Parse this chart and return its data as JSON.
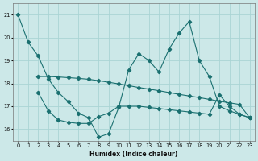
{
  "xlabel": "Humidex (Indice chaleur)",
  "background_color": "#cce8e8",
  "grid_color": "#aad4d4",
  "line_color": "#1a7070",
  "xlim": [
    -0.5,
    23.5
  ],
  "ylim": [
    15.5,
    21.5
  ],
  "yticks": [
    16,
    17,
    18,
    19,
    20,
    21
  ],
  "xticks": [
    0,
    1,
    2,
    3,
    4,
    5,
    6,
    7,
    8,
    9,
    10,
    11,
    12,
    13,
    14,
    15,
    16,
    17,
    18,
    19,
    20,
    21,
    22,
    23
  ],
  "s1_x": [
    0,
    1,
    2,
    3,
    4,
    5,
    6,
    7,
    8,
    9,
    10,
    11,
    12,
    13,
    14,
    15,
    16,
    17,
    18,
    19,
    20,
    21,
    22,
    23
  ],
  "s1_y": [
    21.0,
    19.8,
    19.2,
    18.2,
    17.6,
    17.2,
    16.7,
    16.5,
    15.65,
    15.8,
    16.95,
    18.6,
    19.3,
    19.0,
    18.5,
    19.5,
    20.2,
    20.7,
    19.0,
    18.3,
    17.0,
    16.8,
    16.65,
    16.5
  ],
  "s2_x": [
    2,
    3,
    4,
    5,
    6,
    7,
    8,
    9,
    10,
    11,
    12,
    13,
    14,
    15,
    16,
    17,
    18,
    19,
    20,
    21,
    22,
    23
  ],
  "s2_y": [
    17.6,
    16.8,
    16.4,
    16.3,
    16.25,
    16.25,
    16.55,
    16.7,
    17.0,
    17.0,
    17.0,
    16.95,
    16.9,
    16.85,
    16.8,
    16.75,
    16.7,
    16.65,
    17.5,
    17.0,
    16.65,
    16.5
  ],
  "s3_x": [
    2,
    3,
    4,
    5,
    6,
    7,
    8,
    9,
    10,
    11,
    12,
    13,
    14,
    15,
    16,
    17,
    18,
    19,
    20,
    21,
    22,
    23
  ],
  "s3_y": [
    18.3,
    18.3,
    18.28,
    18.25,
    18.22,
    18.18,
    18.12,
    18.05,
    17.98,
    17.9,
    17.82,
    17.75,
    17.68,
    17.6,
    17.52,
    17.45,
    17.38,
    17.3,
    17.22,
    17.15,
    17.08,
    16.5
  ]
}
